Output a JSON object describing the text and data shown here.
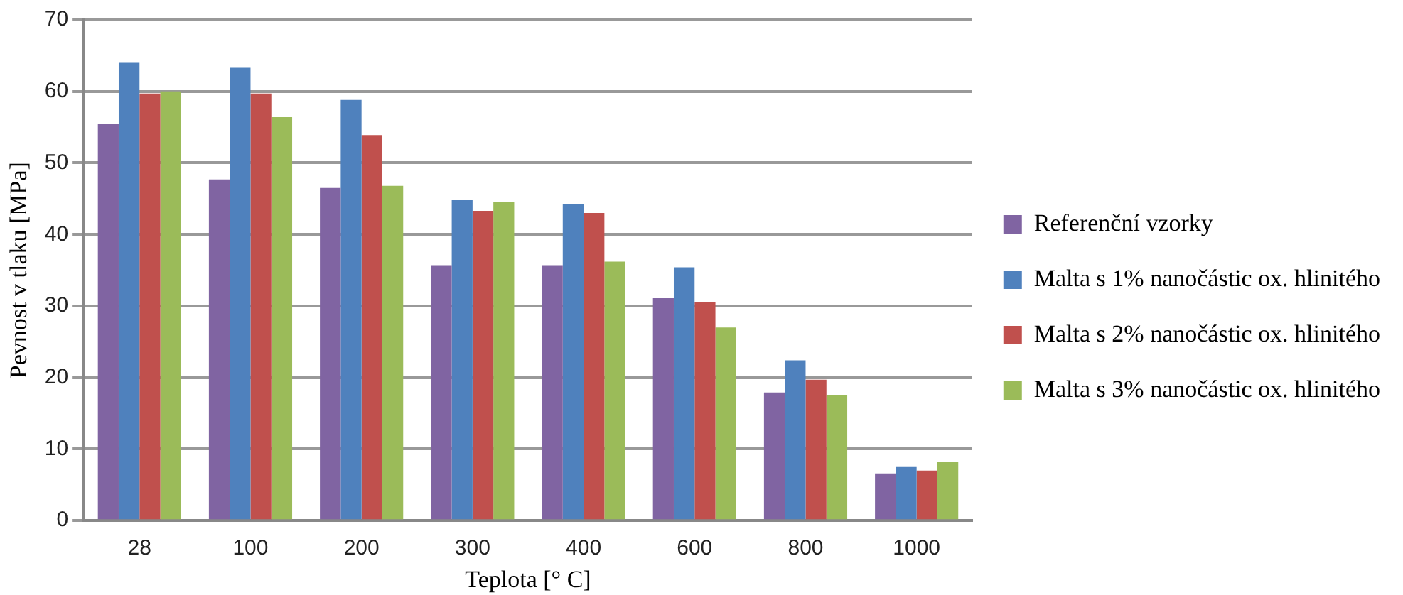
{
  "chart_data": {
    "type": "bar",
    "xlabel": "Teplota [° C]",
    "ylabel": "Pevnost v tlaku [MPa]",
    "categories": [
      "28",
      "100",
      "200",
      "300",
      "400",
      "600",
      "800",
      "1000"
    ],
    "series": [
      {
        "name": "Referenční vzorky",
        "color": "#8064a2",
        "values": [
          55.5,
          47.7,
          46.5,
          35.7,
          35.7,
          31.1,
          17.9,
          6.6
        ]
      },
      {
        "name": "Malta s 1% nanočástic ox. hlinitého",
        "color": "#4f81bd",
        "values": [
          64,
          63.3,
          58.8,
          44.8,
          44.3,
          35.4,
          22.4,
          7.5
        ]
      },
      {
        "name": "Malta s 2% nanočástic ox. hlinitého",
        "color": "#c0504d",
        "values": [
          59.7,
          59.7,
          53.9,
          43.3,
          43,
          30.5,
          19.7,
          7
        ]
      },
      {
        "name": "Malta s 3% nanočástic ox. hlinitého",
        "color": "#9bbb59",
        "values": [
          60,
          56.4,
          46.8,
          44.5,
          36.2,
          27,
          17.5,
          8.2
        ]
      }
    ],
    "ylim": [
      0,
      70
    ],
    "yticks": [
      0,
      10,
      20,
      30,
      40,
      50,
      60,
      70
    ],
    "grid": "y",
    "legend": "right"
  }
}
